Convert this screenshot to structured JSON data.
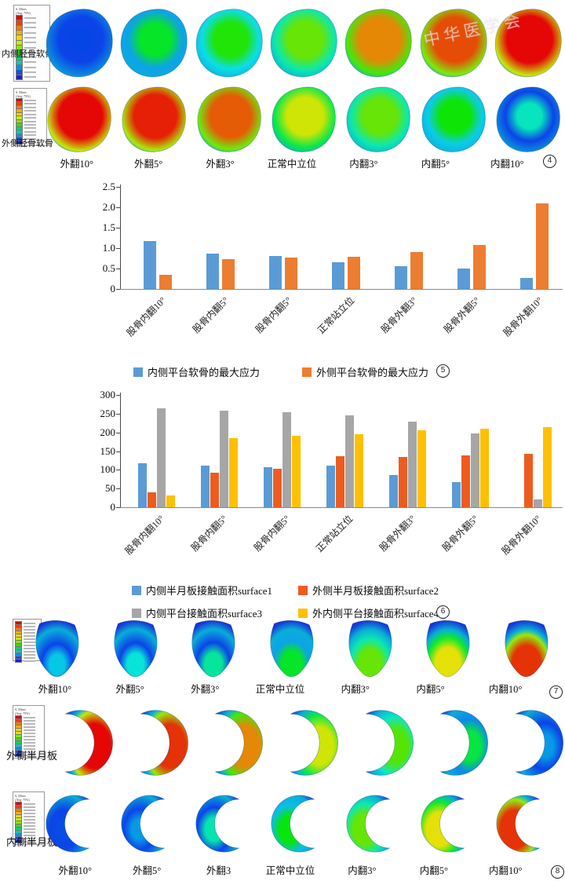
{
  "watermark": {
    "text": "中华医学会"
  },
  "colorbar": {
    "title": "S, Mises",
    "subtitle": "(Avg: 75%)"
  },
  "tags": {
    "tibial": "4",
    "stress_chart": "5",
    "area_chart": "6",
    "femur": "7",
    "meniscus": "8"
  },
  "tibial_panel": {
    "rows": [
      {
        "label": "内侧胫骨软骨",
        "shape": "tibial",
        "intensities": [
          0.05,
          0.45,
          0.52,
          0.6,
          0.85,
          0.92,
          1.0
        ]
      },
      {
        "label": "外侧胫骨软骨",
        "shape": "tibial",
        "intensities": [
          1.0,
          0.97,
          0.9,
          0.72,
          0.6,
          0.5,
          0.28
        ]
      }
    ],
    "column_labels": [
      "外翻10°",
      "外翻5°",
      "外翻3°",
      "正常中立位",
      "内翻3°",
      "内翻5°",
      "内翻10°"
    ]
  },
  "femur_panel": {
    "shape": "femur",
    "intensities": [
      0.2,
      0.25,
      0.32,
      0.45,
      0.6,
      0.75,
      0.95
    ],
    "column_labels": [
      "外翻10°",
      "外翻5°",
      "外翻3°",
      "正常中立位",
      "内翻3°",
      "内翻5°",
      "内翻10°"
    ]
  },
  "meniscus_panel": {
    "rows": [
      {
        "label": "外侧半月板",
        "shape": "crescent-open-left",
        "intensities": [
          1.0,
          0.95,
          0.85,
          0.72,
          0.58,
          0.42,
          0.15
        ]
      },
      {
        "label": "内侧半月板",
        "shape": "crescent-open-right",
        "intensities": [
          0.06,
          0.15,
          0.3,
          0.48,
          0.6,
          0.75,
          0.95
        ]
      }
    ],
    "column_labels": [
      "外翻10°",
      "外翻5°",
      "外翻3",
      "正常中立位",
      "内翻3°",
      "内翻5°",
      "内翻10°"
    ]
  },
  "chart_data": [
    {
      "type": "bar",
      "title": "",
      "xlabel": "",
      "ylabel": "",
      "categories": [
        "股骨内翻10°",
        "股骨内翻5°",
        "股骨内翻5°",
        "正常站立位",
        "股骨外翻3°",
        "股骨外翻5°",
        "股骨外翻10°"
      ],
      "series": [
        {
          "name": "内侧平台软骨的最大应力",
          "color": "#5B9BD5",
          "values": [
            1.17,
            0.87,
            0.8,
            0.65,
            0.55,
            0.5,
            0.27
          ]
        },
        {
          "name": "外侧平台软骨的最大应力",
          "color": "#ED7D31",
          "values": [
            0.35,
            0.74,
            0.76,
            0.78,
            0.91,
            1.08,
            2.1
          ]
        }
      ],
      "ylim": [
        0,
        2.5
      ],
      "ytick_labels": [
        "0",
        "0.5",
        "1.0",
        "1.5",
        "2.0",
        "2.5"
      ],
      "grid": false,
      "legend_position": "bottom"
    },
    {
      "type": "bar",
      "title": "",
      "xlabel": "",
      "ylabel": "",
      "categories": [
        "股骨内翻10°",
        "股骨内翻5°",
        "股骨内翻5°",
        "正常站立位",
        "股骨外翻3°",
        "股骨外翻5°",
        "股骨外翻10°"
      ],
      "series": [
        {
          "name": "内侧半月板接触面积surface1",
          "color": "#5B9BD5",
          "values": [
            117,
            112,
            107,
            111,
            86,
            67,
            0
          ]
        },
        {
          "name": "外侧半月板接触面积surface2",
          "color": "#ED5C1E",
          "values": [
            40,
            93,
            103,
            136,
            134,
            138,
            143
          ]
        },
        {
          "name": "内侧平台接触面积surface3",
          "color": "#A6A6A6",
          "values": [
            265,
            258,
            253,
            245,
            228,
            197,
            22
          ]
        },
        {
          "name": "外内侧平台接触面积surface4",
          "color": "#FFC000",
          "values": [
            32,
            184,
            191,
            196,
            205,
            210,
            215
          ]
        }
      ],
      "ylim": [
        0,
        300
      ],
      "ytick_labels": [
        "0",
        "50",
        "100",
        "150",
        "200",
        "250",
        "300"
      ],
      "grid": false,
      "legend_position": "bottom"
    }
  ]
}
